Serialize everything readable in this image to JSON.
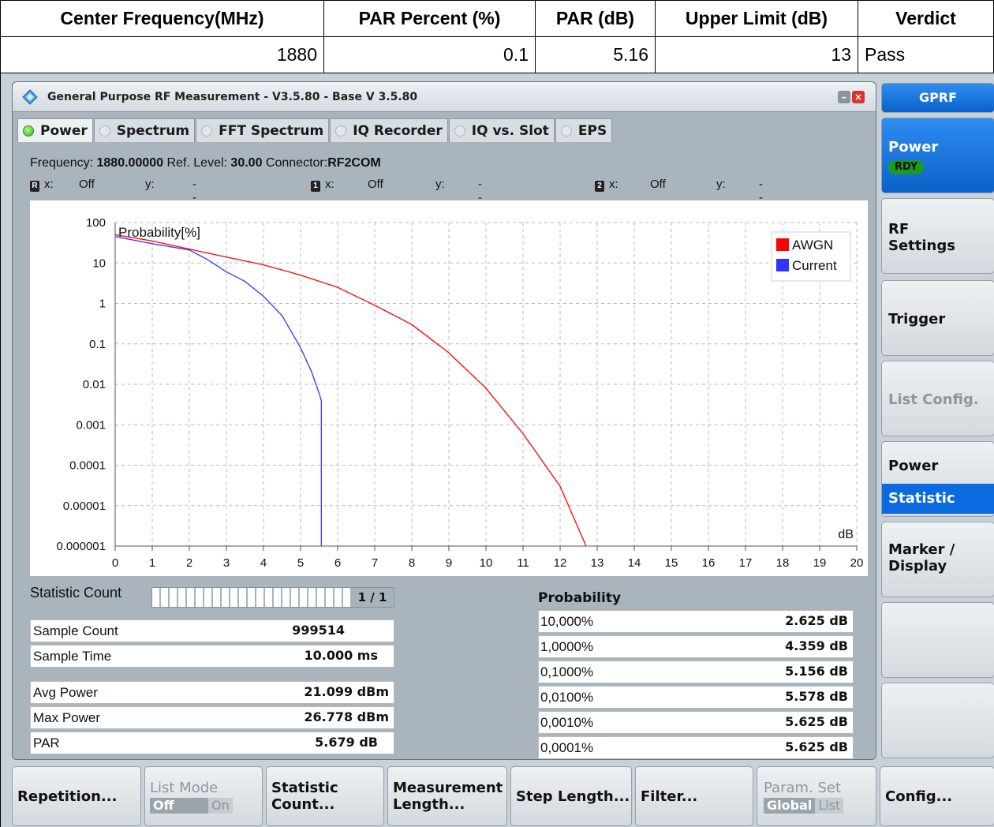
{
  "result_table": {
    "headers": [
      "Center Frequency(MHz)",
      "PAR Percent (%)",
      "PAR (dB)",
      "Upper Limit (dB)",
      "Verdict"
    ],
    "row": [
      "1880",
      "0.1",
      "5.16",
      "13",
      "Pass"
    ]
  },
  "window": {
    "title": "General Purpose RF Measurement  - V3.5.80 - Base V 3.5.80",
    "tabs": [
      "Power",
      "Spectrum",
      "FFT Spectrum",
      "IQ Recorder",
      "IQ vs. Slot",
      "EPS"
    ],
    "active_tab": "Power"
  },
  "info": {
    "frequency_label": "Frequency:",
    "frequency_value": "1880.00000",
    "ref_level_label": "Ref. Level:",
    "ref_level_value": "30.00",
    "connector_label": "Connector:",
    "connector_value": "RF2COM"
  },
  "markers": [
    {
      "id": "R",
      "x_label": "x:",
      "x": "Off",
      "y_label": "y:",
      "y": "---"
    },
    {
      "id": "1",
      "x_label": "x:",
      "x": "Off",
      "y_label": "y:",
      "y": "---"
    },
    {
      "id": "2",
      "x_label": "x:",
      "x": "Off",
      "y_label": "y:",
      "y": "---"
    }
  ],
  "chart_data": {
    "type": "line",
    "ylabel": "Probability[%]",
    "xlabel": "dB",
    "y_scale": "log",
    "ylim": [
      1e-06,
      100
    ],
    "xlim": [
      0,
      20
    ],
    "y_tick_labels": [
      "100",
      "10",
      "1",
      "0.1",
      "0.01",
      "0.001",
      "0.0001",
      "0.00001",
      "0.000001"
    ],
    "x_tick_labels": [
      "0",
      "1",
      "2",
      "3",
      "4",
      "5",
      "6",
      "7",
      "8",
      "9",
      "10",
      "11",
      "12",
      "13",
      "14",
      "15",
      "16",
      "17",
      "18",
      "19",
      "20"
    ],
    "grid": true,
    "legend_position": "top-right",
    "series": [
      {
        "name": "AWGN",
        "color": "#ff0000",
        "x": [
          0,
          1,
          2,
          3,
          4,
          5,
          6,
          7,
          8,
          9,
          10,
          11,
          12,
          12.7
        ],
        "y": [
          50,
          35,
          22,
          14,
          9,
          5,
          2.5,
          0.9,
          0.3,
          0.06,
          0.008,
          0.0006,
          3e-05,
          1e-06
        ]
      },
      {
        "name": "Current",
        "color": "#3333ff",
        "x": [
          0,
          1,
          2,
          2.5,
          3,
          3.5,
          4,
          4.5,
          5,
          5.3,
          5.5,
          5.56,
          5.56
        ],
        "y": [
          45,
          30,
          21,
          12,
          6,
          3.5,
          1.5,
          0.5,
          0.08,
          0.02,
          0.006,
          0.004,
          1e-06
        ]
      }
    ]
  },
  "stats": {
    "statistic_count_label": "Statistic Count",
    "statistic_count_value": "1 / 1",
    "rows": [
      {
        "label": "Sample Count",
        "value": "999514"
      },
      {
        "label": "Sample Time",
        "value": "10.000  ms"
      },
      {
        "label": "Avg Power",
        "value": "21.099  dBm"
      },
      {
        "label": "Max Power",
        "value": "26.778  dBm"
      },
      {
        "label": "PAR",
        "value": "5.679  dB"
      }
    ]
  },
  "probability": {
    "heading": "Probability",
    "rows": [
      {
        "label": "10,000%",
        "value": "2.625  dB"
      },
      {
        "label": "1,0000%",
        "value": "4.359  dB"
      },
      {
        "label": "0,1000%",
        "value": "5.156  dB"
      },
      {
        "label": "0,0100%",
        "value": "5.578  dB"
      },
      {
        "label": "0,0010%",
        "value": "5.625  dB"
      },
      {
        "label": "0,0001%",
        "value": "5.625  dB"
      }
    ]
  },
  "side_keys": {
    "header": "GPRF",
    "power": "Power",
    "power_status": "RDY",
    "rf_settings_1": "RF",
    "rf_settings_2": "Settings",
    "trigger": "Trigger",
    "list_config": "List Config.",
    "power_statistic_1": "Power",
    "power_statistic_2": "Statistic",
    "marker_display_1": "Marker /",
    "marker_display_2": "Display"
  },
  "bottom_keys": {
    "repetition": "Repetition...",
    "list_mode": "List Mode",
    "list_mode_off": "Off",
    "list_mode_on": "On",
    "statistic_count_1": "Statistic",
    "statistic_count_2": "Count...",
    "measurement_length_1": "Measurement",
    "measurement_length_2": "Length...",
    "step_length": "Step Length...",
    "filter": "Filter...",
    "param_set": "Param. Set",
    "param_global": "Global",
    "param_list": "List",
    "config": "Config..."
  }
}
